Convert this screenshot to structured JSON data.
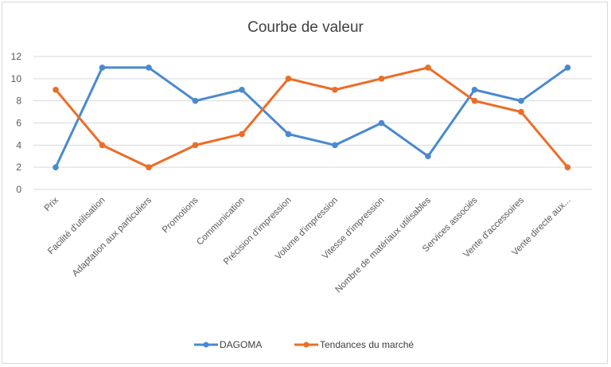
{
  "chart_data": {
    "type": "line",
    "title": "Courbe de valeur",
    "xlabel": "",
    "ylabel": "",
    "ylim": [
      0,
      12
    ],
    "yticks": [
      0,
      2,
      4,
      6,
      8,
      10,
      12
    ],
    "grid": true,
    "legend": "bottom",
    "categories": [
      "Prix",
      "Facilité d'utilisation",
      "Adaptation aux particuliers",
      "Promotions",
      "Communication",
      "Précision d'impression",
      "Volume d'impression",
      "Vitesse d'impression",
      "Nombre de matériaux utilisables",
      "Services  associés",
      "Vente d'accessoires",
      "Vente directe aux..."
    ],
    "series": [
      {
        "name": "DAGOMA",
        "color": "#4a89d0",
        "values": [
          2,
          11,
          11,
          8,
          9,
          5,
          4,
          6,
          3,
          9,
          8,
          11
        ]
      },
      {
        "name": "Tendances  du marché",
        "color": "#ec6d26",
        "values": [
          9,
          4,
          2,
          4,
          5,
          10,
          9,
          10,
          11,
          8,
          7,
          2
        ]
      }
    ]
  }
}
